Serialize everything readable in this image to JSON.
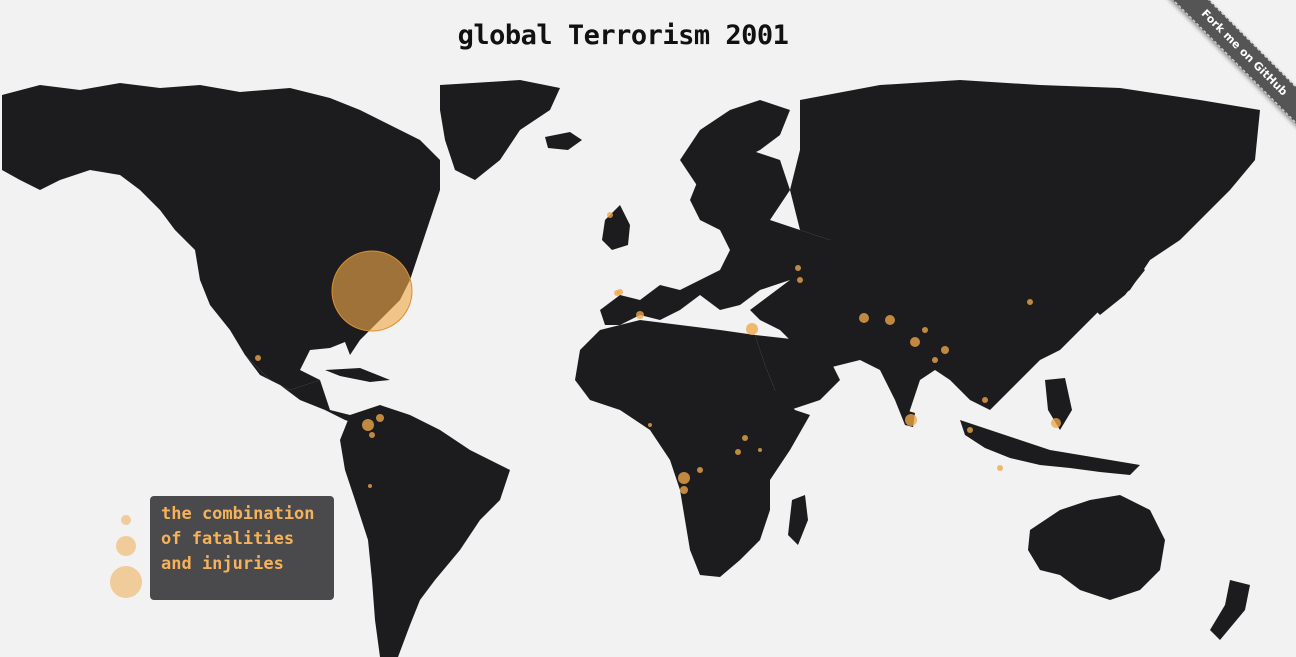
{
  "title": "global Terrorism 2001",
  "ribbon": {
    "label": "Fork me on GitHub"
  },
  "legend": {
    "lines": [
      "the combination",
      "of fatalities",
      "and injuries"
    ]
  },
  "colors": {
    "background": "#f2f2f2",
    "land": "#1c1c1e",
    "marker": "#f0a84a",
    "legend_box": "#4a4a4c",
    "legend_text": "#f5b25a",
    "ribbon": "#555555"
  },
  "markers": [
    {
      "place": "New York",
      "size": "largest"
    },
    {
      "place": "Colombia",
      "size": "medium"
    },
    {
      "place": "Sri Lanka",
      "size": "medium"
    },
    {
      "place": "Israel",
      "size": "medium"
    },
    {
      "place": "Angola",
      "size": "medium"
    },
    {
      "place": "India",
      "size": "medium"
    },
    {
      "place": "Philippines",
      "size": "small"
    },
    {
      "place": "Algeria",
      "size": "small"
    }
  ]
}
